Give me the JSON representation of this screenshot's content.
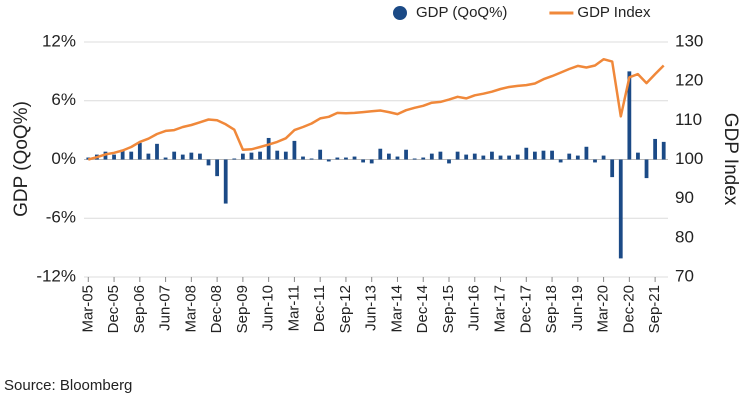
{
  "chart_data": {
    "type": "bar_line",
    "categories": [
      "Mar-05",
      null,
      null,
      "Dec-05",
      null,
      null,
      "Sep-06",
      null,
      null,
      "Jun-07",
      null,
      null,
      "Mar-08",
      null,
      null,
      "Dec-08",
      null,
      null,
      "Sep-09",
      null,
      null,
      "Jun-10",
      null,
      null,
      "Mar-11",
      null,
      null,
      "Dec-11",
      null,
      null,
      "Sep-12",
      null,
      null,
      "Jun-13",
      null,
      null,
      "Mar-14",
      null,
      null,
      "Dec-14",
      null,
      null,
      "Sep-15",
      null,
      null,
      "Jun-16",
      null,
      null,
      "Mar-17",
      null,
      null,
      "Dec-17",
      null,
      null,
      "Sep-18",
      null,
      null,
      "Jun-19",
      null,
      null,
      "Mar-20",
      null,
      null,
      "Dec-20",
      null,
      null,
      "Sep-21",
      null
    ],
    "series": [
      {
        "name": "GDP (QoQ%)",
        "type": "bar",
        "color": "#1b4a86",
        "axis": "y",
        "values": [
          0.2,
          0.5,
          0.8,
          0.5,
          1.0,
          0.8,
          1.7,
          0.6,
          1.6,
          0.2,
          0.8,
          0.5,
          0.7,
          0.6,
          -0.6,
          -1.7,
          -4.5,
          0.1,
          0.6,
          0.7,
          0.8,
          2.2,
          0.9,
          0.8,
          1.9,
          0.3,
          0.1,
          1.0,
          -0.2,
          0.2,
          0.2,
          0.3,
          -0.3,
          -0.4,
          1.1,
          0.6,
          0.3,
          1.0,
          0.1,
          0.2,
          0.6,
          0.8,
          -0.4,
          0.8,
          0.5,
          0.6,
          0.4,
          0.8,
          0.4,
          0.4,
          0.5,
          1.2,
          0.8,
          0.9,
          0.9,
          -0.3,
          0.6,
          0.4,
          1.3,
          -0.3,
          0.4,
          -1.8,
          -10.1,
          9.0,
          0.7,
          -1.9,
          2.1,
          1.8
        ]
      },
      {
        "name": "GDP Index",
        "type": "line",
        "color": "#f0883a",
        "axis": "y2",
        "values": [
          100,
          100.6,
          101.3,
          101.7,
          102.3,
          103.2,
          104.5,
          105.3,
          106.5,
          107.3,
          107.5,
          108.3,
          108.8,
          109.5,
          110.2,
          110.0,
          109.0,
          107.6,
          102.5,
          102.6,
          103.2,
          103.8,
          104.5,
          105.4,
          107.5,
          108.3,
          109.2,
          110.5,
          110.9,
          111.9,
          111.8,
          111.9,
          112.1,
          112.3,
          112.5,
          112.1,
          111.6,
          112.6,
          113.2,
          113.7,
          114.5,
          114.7,
          115.3,
          116.0,
          115.6,
          116.4,
          116.8,
          117.3,
          118.0,
          118.5,
          118.8,
          119.0,
          119.4,
          120.5,
          121.3,
          122.2,
          123.1,
          123.9,
          123.5,
          124.0,
          125.6,
          125.0,
          111.0,
          121.0,
          121.8,
          119.5,
          121.8,
          124.0
        ]
      }
    ],
    "ylabel": "GDP (QoQ%)",
    "y2label": "GDP Index",
    "ylim": [
      -12,
      12
    ],
    "yticks": [
      {
        "value": -12,
        "label": "-12%"
      },
      {
        "value": -6,
        "label": "-6%"
      },
      {
        "value": 0,
        "label": "0%"
      },
      {
        "value": 6,
        "label": "6%"
      },
      {
        "value": 12,
        "label": "12%"
      }
    ],
    "y2lim": [
      70,
      130
    ],
    "y2ticks": [
      70,
      80,
      90,
      100,
      110,
      120,
      130
    ],
    "grid": true,
    "legend": "top",
    "source": "Source: Bloomberg"
  }
}
